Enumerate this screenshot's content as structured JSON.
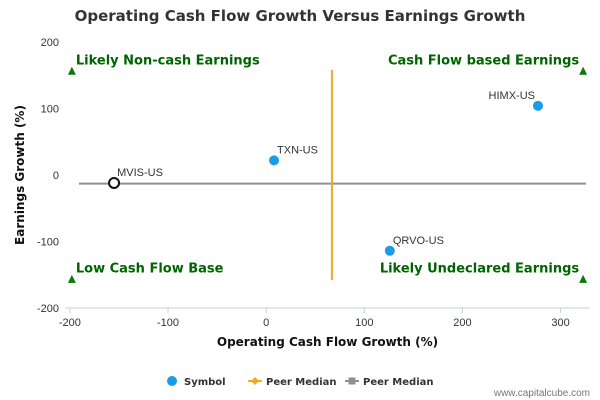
{
  "chart_data": {
    "type": "scatter",
    "title": "Operating Cash Flow Growth Versus Earnings Growth",
    "xlabel": "Operating Cash Flow Growth (%)",
    "ylabel": "Earnings Growth (%)",
    "xlim": [
      -205,
      330
    ],
    "ylim": [
      -200,
      200
    ],
    "xticks": [
      -200,
      -100,
      0,
      100,
      200,
      300
    ],
    "yticks": [
      -200,
      -100,
      0,
      100,
      200
    ],
    "xtick_labels": [
      "-200",
      "-100",
      "0",
      "100",
      "200",
      "300"
    ],
    "ytick_labels": [
      "-200",
      "-100",
      "0",
      "100",
      "200"
    ],
    "points": [
      {
        "label": "HIMX-US",
        "x": 277,
        "y": 104,
        "highlight": false
      },
      {
        "label": "TXN-US",
        "x": 8,
        "y": 22,
        "highlight": false
      },
      {
        "label": "MVIS-US",
        "x": -155,
        "y": -12,
        "highlight": true
      },
      {
        "label": "QRVO-US",
        "x": 126,
        "y": -114,
        "highlight": false
      }
    ],
    "peer_median_x": 67,
    "peer_median_y": -13,
    "quadrant_labels": [
      {
        "text": "Likely Non-cash Earnings",
        "corner": "top-left"
      },
      {
        "text": "Cash Flow based Earnings",
        "corner": "top-right"
      },
      {
        "text": "Low Cash Flow Base",
        "corner": "bottom-left"
      },
      {
        "text": "Likely Undeclared Earnings",
        "corner": "bottom-right"
      }
    ],
    "legend": [
      {
        "name": "Symbol",
        "color": "#1a9be6",
        "marker": "circle"
      },
      {
        "name": "Peer Median",
        "color": "#f5a623",
        "marker": "diamond-line"
      },
      {
        "name": "Peer Median",
        "color": "#8f8f99",
        "marker": "square-line"
      }
    ],
    "legend_position": "bottom-center",
    "grid": false,
    "colors": {
      "point": "#1a9be6",
      "peer_median_vertical": "#f5a623",
      "peer_median_horizontal": "#8f8f99",
      "quadrant_text": "#006400",
      "quadrant_marker": "#0a7a0a"
    }
  },
  "credit": "www.capitalcube.com"
}
